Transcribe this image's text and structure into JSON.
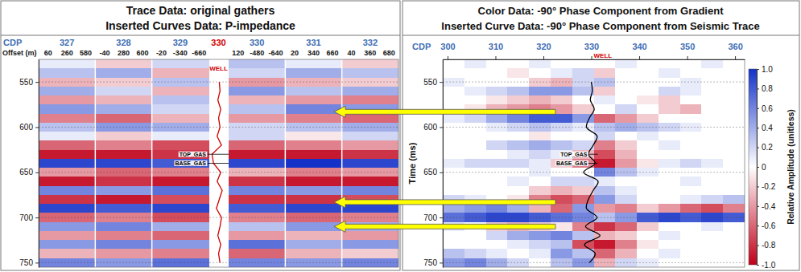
{
  "chart_data": [
    {
      "type": "heatmap",
      "title": "Trace Data: original gathers",
      "subtitle": "Inserted Curves Data: P-impedance",
      "cdp_label": "CDP",
      "offset_label": "Offset (m)",
      "cdps": [
        327,
        328,
        329,
        330,
        331,
        332
      ],
      "offsets": [
        60,
        260,
        580,
        -40,
        280,
        600,
        -20,
        -340,
        -660,
        120,
        -480,
        -640,
        20,
        340,
        660,
        40,
        360,
        680
      ],
      "well": {
        "label": "WELL",
        "cdp": 330
      },
      "ylim": [
        525,
        755
      ],
      "yticks": [
        550,
        600,
        650,
        700,
        750
      ],
      "grid": true,
      "cell_times": [
        525,
        535,
        545,
        555,
        565,
        575,
        585,
        595,
        605,
        615,
        625,
        635,
        645,
        655,
        665,
        675,
        685,
        695,
        705,
        715,
        725,
        735,
        745
      ],
      "cells": [
        [
          0.1,
          -0.2,
          0.2,
          0.3,
          0.1,
          -0.2
        ],
        [
          0.3,
          0.4,
          -0.3,
          0.2,
          0.4,
          0.3
        ],
        [
          -0.3,
          -0.2,
          0.3,
          -0.4,
          -0.3,
          -0.2
        ],
        [
          0.4,
          0.2,
          -0.3,
          0.5,
          0.3,
          0.4
        ],
        [
          -0.4,
          -0.3,
          0.3,
          -0.3,
          -0.4,
          -0.5
        ],
        [
          0.5,
          0.4,
          0.2,
          0.3,
          0.6,
          0.5
        ],
        [
          -0.5,
          -0.6,
          -0.3,
          -0.4,
          -0.5,
          -0.6
        ],
        [
          0.3,
          0.5,
          0.4,
          0.2,
          0.3,
          0.4
        ],
        [
          0.1,
          -0.2,
          0.1,
          0.2,
          -0.1,
          0.2
        ],
        [
          -0.6,
          -0.5,
          -0.7,
          -0.6,
          -0.5,
          -0.4
        ],
        [
          -0.9,
          -0.9,
          -0.8,
          -0.9,
          -0.9,
          -0.8
        ],
        [
          0.9,
          0.9,
          0.8,
          0.9,
          1.0,
          0.9
        ],
        [
          -0.4,
          -0.6,
          -0.5,
          -0.3,
          -0.5,
          -0.4
        ],
        [
          -0.9,
          -0.8,
          -0.9,
          -0.8,
          -0.9,
          -0.9
        ],
        [
          0.6,
          0.5,
          0.7,
          0.6,
          0.5,
          0.6
        ],
        [
          -0.8,
          -0.9,
          -0.7,
          -0.8,
          -0.8,
          -0.7
        ],
        [
          0.9,
          0.8,
          0.9,
          0.8,
          0.9,
          0.9
        ],
        [
          -0.6,
          -0.5,
          -0.7,
          -0.5,
          -0.6,
          -0.5
        ],
        [
          0.5,
          0.6,
          0.4,
          0.3,
          0.5,
          0.4
        ],
        [
          -0.4,
          -0.5,
          -0.6,
          -0.4,
          -0.3,
          -0.4
        ],
        [
          0.5,
          0.6,
          0.5,
          0.7,
          0.4,
          0.5
        ],
        [
          -0.3,
          -0.4,
          -0.5,
          -0.6,
          -0.3,
          -0.2
        ],
        [
          0.6,
          0.5,
          0.7,
          0.6,
          0.5,
          0.6
        ]
      ],
      "p_impedance": {
        "color": "#d00000",
        "time": [
          550,
          560,
          570,
          580,
          590,
          600,
          610,
          620,
          630,
          640,
          650,
          660,
          670,
          680,
          690,
          700,
          710,
          720,
          730,
          740,
          750
        ],
        "values": [
          0.1,
          0.2,
          -0.1,
          0.3,
          0,
          0.2,
          -0.2,
          0.4,
          -0.9,
          -0.7,
          0.3,
          -0.2,
          0.5,
          0.1,
          -0.3,
          0.4,
          0.2,
          -0.1,
          0.3,
          0,
          0.2
        ]
      },
      "horizons": [
        {
          "label": "TOP_GAS",
          "time": 630
        },
        {
          "label": "BASE_GAS",
          "time": 640
        }
      ]
    },
    {
      "type": "heatmap",
      "title": "Color Data: -90° Phase Component from Gradient",
      "subtitle": "Inserted Curve Data: -90° Phase Component from Seismic Trace",
      "xlabel": "CDP",
      "ylabel": "Time (ms)",
      "xlim": [
        299,
        362
      ],
      "xticks": [
        300,
        310,
        320,
        330,
        340,
        350,
        360
      ],
      "ylim": [
        525,
        755
      ],
      "yticks": [
        550,
        600,
        650,
        700,
        750
      ],
      "grid": true,
      "well": {
        "label": "WELL",
        "cdp": 330
      },
      "x_edges": [
        299,
        303.5,
        308,
        312.5,
        317,
        321.5,
        326,
        330.5,
        335,
        339.5,
        344,
        348.5,
        353,
        357.5,
        362
      ],
      "cell_times": [
        525,
        535,
        545,
        555,
        565,
        575,
        585,
        595,
        605,
        615,
        625,
        635,
        645,
        655,
        665,
        675,
        685,
        695,
        705,
        715,
        725,
        735,
        745
      ],
      "cells": [
        [
          0,
          0.1,
          0,
          0,
          0.1,
          0,
          0,
          0,
          0.1,
          0,
          0,
          0,
          0.1,
          0
        ],
        [
          0,
          0,
          0,
          -0.1,
          0,
          0.1,
          0.2,
          -0.2,
          0,
          0,
          0.1,
          0,
          0,
          0
        ],
        [
          0.1,
          0,
          0,
          0,
          -0.2,
          -0.3,
          0.2,
          0.3,
          0,
          0,
          0,
          0.1,
          0,
          0
        ],
        [
          0,
          0.1,
          0.2,
          0.3,
          0.5,
          0.5,
          0.3,
          -0.2,
          0,
          0,
          0.2,
          0.1,
          0,
          0
        ],
        [
          0,
          0,
          -0.1,
          -0.2,
          -0.3,
          -0.2,
          0,
          0.1,
          0,
          -0.1,
          -0.2,
          0,
          0,
          0
        ],
        [
          0,
          -0.1,
          -0.3,
          -0.4,
          -0.5,
          -0.4,
          -0.2,
          0,
          0.2,
          0,
          -0.2,
          -0.3,
          0,
          0
        ],
        [
          0.1,
          0.2,
          0.4,
          0.6,
          0.8,
          0.8,
          0.5,
          -0.6,
          -0.4,
          -0.2,
          0,
          0,
          0,
          0
        ],
        [
          0,
          0,
          0.1,
          0.2,
          0.3,
          0.2,
          0.1,
          0.3,
          0.4,
          0.3,
          0.2,
          0.1,
          0,
          0
        ],
        [
          0,
          0,
          0,
          0,
          -0.1,
          0,
          0,
          0.2,
          0,
          0.1,
          0,
          0,
          0,
          0
        ],
        [
          0,
          0,
          0.2,
          0.3,
          0.4,
          0.3,
          0.2,
          -0.5,
          -0.2,
          0,
          0.1,
          0,
          0,
          0
        ],
        [
          0,
          0,
          0,
          0.1,
          0.2,
          0.1,
          -0.3,
          -0.7,
          -0.3,
          0,
          0,
          0,
          0,
          0
        ],
        [
          0.1,
          0.2,
          0.2,
          0.2,
          0.1,
          -0.2,
          -0.5,
          -0.9,
          -0.4,
          -0.1,
          0.1,
          0.2,
          0.1,
          0
        ],
        [
          0,
          0,
          0,
          0,
          0.1,
          0,
          0,
          0.6,
          0.3,
          0.1,
          0,
          0,
          0,
          0
        ],
        [
          0,
          0,
          0,
          0.1,
          0,
          0.2,
          0.2,
          0.1,
          0,
          0,
          0,
          0.1,
          0,
          0
        ],
        [
          0,
          0,
          0,
          0,
          -0.2,
          -0.3,
          -0.2,
          0.3,
          0.1,
          0,
          0,
          0,
          0,
          0
        ],
        [
          0.2,
          0.1,
          0,
          -0.1,
          -0.5,
          -0.7,
          -0.6,
          0.5,
          0.2,
          0,
          0,
          0.1,
          0.2,
          0.3
        ],
        [
          0.4,
          0.5,
          0.6,
          0.4,
          -0.3,
          -0.6,
          0.5,
          -0.4,
          -0.5,
          -0.2,
          -0.4,
          -0.6,
          -0.7,
          -0.5
        ],
        [
          0.7,
          0.8,
          0.9,
          0.9,
          0.8,
          0.7,
          0.6,
          0.3,
          0.5,
          0.8,
          0.9,
          0.8,
          0.9,
          0.8
        ],
        [
          0.1,
          0,
          -0.2,
          -0.3,
          -0.2,
          -0.1,
          -0.5,
          -0.8,
          -0.6,
          -0.2,
          0,
          0,
          0.1,
          0
        ],
        [
          0,
          0,
          0.2,
          0.4,
          0.5,
          0.6,
          0.3,
          -0.3,
          -0.2,
          0,
          0.1,
          0,
          0,
          0
        ],
        [
          0,
          0,
          0,
          0.1,
          0.2,
          0.3,
          -0.7,
          -0.9,
          -0.5,
          -0.1,
          0,
          0,
          0,
          0
        ],
        [
          0.3,
          0.2,
          0.1,
          0,
          0.1,
          0.5,
          0.3,
          -0.6,
          -0.3,
          0,
          0.1,
          0,
          0,
          0
        ],
        [
          0.5,
          0.6,
          0.4,
          0.2,
          0,
          0.3,
          0.5,
          -0.3,
          0.2,
          0.1,
          0,
          0,
          0,
          0
        ]
      ],
      "seismic_trace": {
        "color": "#000000",
        "time": [
          550,
          560,
          570,
          580,
          590,
          600,
          610,
          620,
          630,
          640,
          650,
          660,
          670,
          680,
          690,
          700,
          710,
          720,
          730,
          740,
          750
        ],
        "values": [
          0,
          0.1,
          -0.1,
          0.3,
          -0.2,
          -0.5,
          0.6,
          0.2,
          -0.3,
          0.4,
          -0.8,
          0.7,
          0.2,
          -0.3,
          -0.5,
          0.6,
          -0.6,
          0.9,
          -0.7,
          0.4,
          -0.2
        ]
      },
      "horizons": [
        {
          "label": "TOP_GAS",
          "time": 630
        },
        {
          "label": "BASE_GAS",
          "time": 640
        }
      ],
      "colorbar": {
        "label": "Relative Amplitude (unitless)",
        "range": [
          -1,
          1
        ],
        "ticks": [
          {
            "value": 1,
            "label": "1.0"
          },
          0.8,
          0.6,
          0.4,
          0.2,
          0,
          -0.2,
          -0.4,
          -0.6,
          -0.8,
          {
            "value": -1,
            "label": "-1.0"
          }
        ]
      }
    }
  ],
  "arrows": {
    "times": [
      583,
      683,
      710
    ],
    "color": "#ffff00"
  }
}
